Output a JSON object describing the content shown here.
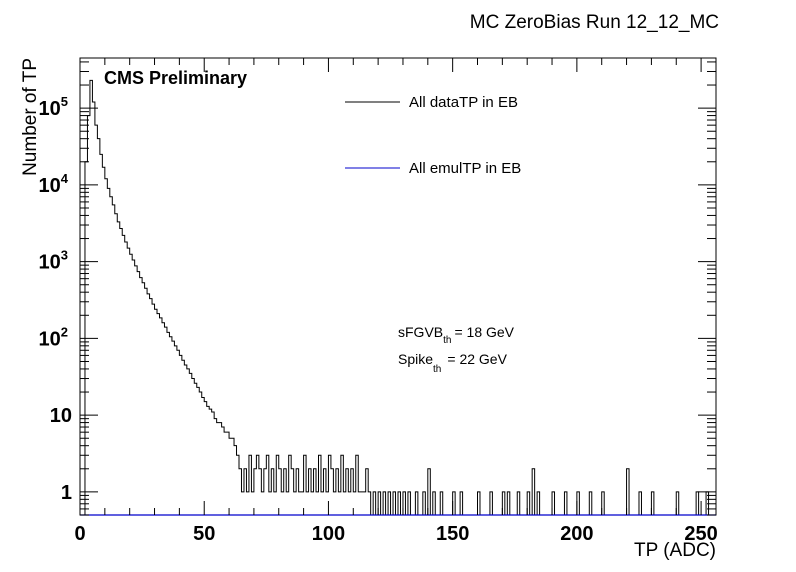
{
  "chart_data": {
    "type": "histogram",
    "title": "MC ZeroBias Run 12_12_MC",
    "xlabel": "TP (ADC)",
    "ylabel": "Number of TP",
    "xlim": [
      0,
      256
    ],
    "ylim": [
      0.5,
      450000
    ],
    "log_y": true,
    "grid": false,
    "legend_position": "top-center",
    "x_ticks": [
      {
        "value": 0,
        "label": "0"
      },
      {
        "value": 50,
        "label": "50"
      },
      {
        "value": 100,
        "label": "100"
      },
      {
        "value": 150,
        "label": "150"
      },
      {
        "value": 200,
        "label": "200"
      },
      {
        "value": 250,
        "label": "250"
      }
    ],
    "y_ticks": [
      {
        "value": 1,
        "base": "1",
        "exp": ""
      },
      {
        "value": 10,
        "base": "10",
        "exp": ""
      },
      {
        "value": 100,
        "base": "10",
        "exp": "2"
      },
      {
        "value": 1000,
        "base": "10",
        "exp": "3"
      },
      {
        "value": 10000,
        "base": "10",
        "exp": "4"
      },
      {
        "value": 100000,
        "base": "10",
        "exp": "5"
      }
    ],
    "annotation_cms": "CMS Preliminary",
    "annotation_sfgvb": {
      "base": "sFGVB",
      "sub": "th",
      "value": "= 18 GeV"
    },
    "annotation_spike": {
      "base": "Spike",
      "sub": "th",
      "value": "= 22 GeV"
    },
    "series": [
      {
        "name": "All dataTP in EB",
        "color": "#000000",
        "bins": [
          [
            2,
            20000
          ],
          [
            3,
            80000
          ],
          [
            4,
            230000
          ],
          [
            5,
            120000
          ],
          [
            6,
            60000
          ],
          [
            7,
            40000
          ],
          [
            8,
            25000
          ],
          [
            9,
            17000
          ],
          [
            10,
            12000
          ],
          [
            11,
            9000
          ],
          [
            12,
            7000
          ],
          [
            13,
            5500
          ],
          [
            14,
            4200
          ],
          [
            15,
            3300
          ],
          [
            16,
            2700
          ],
          [
            17,
            2200
          ],
          [
            18,
            1800
          ],
          [
            19,
            1500
          ],
          [
            20,
            1250
          ],
          [
            21,
            1050
          ],
          [
            22,
            880
          ],
          [
            23,
            740
          ],
          [
            24,
            620
          ],
          [
            25,
            530
          ],
          [
            26,
            450
          ],
          [
            27,
            380
          ],
          [
            28,
            330
          ],
          [
            29,
            280
          ],
          [
            30,
            240
          ],
          [
            31,
            210
          ],
          [
            32,
            185
          ],
          [
            33,
            160
          ],
          [
            34,
            140
          ],
          [
            35,
            120
          ],
          [
            36,
            105
          ],
          [
            37,
            92
          ],
          [
            38,
            80
          ],
          [
            39,
            70
          ],
          [
            40,
            60
          ],
          [
            41,
            52
          ],
          [
            42,
            45
          ],
          [
            43,
            40
          ],
          [
            44,
            35
          ],
          [
            45,
            30
          ],
          [
            46,
            26
          ],
          [
            47,
            23
          ],
          [
            48,
            20
          ],
          [
            49,
            17
          ],
          [
            50,
            15
          ],
          [
            51,
            13
          ],
          [
            52,
            12
          ],
          [
            53,
            11
          ],
          [
            54,
            9
          ],
          [
            55,
            8
          ],
          [
            56,
            8
          ],
          [
            57,
            7
          ],
          [
            58,
            6
          ],
          [
            59,
            6
          ],
          [
            60,
            5
          ],
          [
            61,
            5
          ],
          [
            62,
            4
          ],
          [
            63,
            3
          ],
          [
            64,
            2
          ],
          [
            65,
            1
          ],
          [
            66,
            2
          ],
          [
            67,
            1
          ],
          [
            68,
            3
          ],
          [
            69,
            1
          ],
          [
            70,
            2
          ],
          [
            71,
            3
          ],
          [
            72,
            2
          ],
          [
            73,
            1
          ],
          [
            74,
            2
          ],
          [
            75,
            3
          ],
          [
            76,
            1
          ],
          [
            77,
            2
          ],
          [
            78,
            1
          ],
          [
            79,
            3
          ],
          [
            80,
            2
          ],
          [
            81,
            1
          ],
          [
            82,
            2
          ],
          [
            83,
            1
          ],
          [
            84,
            3
          ],
          [
            85,
            2
          ],
          [
            86,
            1
          ],
          [
            87,
            2
          ],
          [
            88,
            1
          ],
          [
            89,
            1
          ],
          [
            90,
            3
          ],
          [
            91,
            1
          ],
          [
            92,
            2
          ],
          [
            93,
            1
          ],
          [
            94,
            2
          ],
          [
            95,
            1
          ],
          [
            96,
            3
          ],
          [
            97,
            1
          ],
          [
            98,
            2
          ],
          [
            99,
            1
          ],
          [
            100,
            3
          ],
          [
            101,
            2
          ],
          [
            102,
            1
          ],
          [
            103,
            2
          ],
          [
            104,
            1
          ],
          [
            105,
            3
          ],
          [
            106,
            1
          ],
          [
            107,
            2
          ],
          [
            108,
            1
          ],
          [
            109,
            2
          ],
          [
            110,
            1
          ],
          [
            111,
            3
          ],
          [
            112,
            1
          ],
          [
            113,
            1
          ],
          [
            114,
            1
          ],
          [
            115,
            2
          ],
          [
            116,
            1
          ],
          [
            118,
            1
          ],
          [
            120,
            1
          ],
          [
            122,
            1
          ],
          [
            124,
            1
          ],
          [
            126,
            1
          ],
          [
            128,
            1
          ],
          [
            130,
            1
          ],
          [
            132,
            1
          ],
          [
            135,
            1
          ],
          [
            138,
            1
          ],
          [
            140,
            2
          ],
          [
            142,
            1
          ],
          [
            145,
            1
          ],
          [
            150,
            1
          ],
          [
            153,
            1
          ],
          [
            160,
            1
          ],
          [
            165,
            1
          ],
          [
            170,
            1
          ],
          [
            172,
            1
          ],
          [
            176,
            1
          ],
          [
            180,
            1
          ],
          [
            182,
            2
          ],
          [
            184,
            1
          ],
          [
            190,
            1
          ],
          [
            195,
            1
          ],
          [
            200,
            1
          ],
          [
            205,
            1
          ],
          [
            210,
            1
          ],
          [
            220,
            2
          ],
          [
            225,
            1
          ],
          [
            230,
            1
          ],
          [
            240,
            1
          ],
          [
            248,
            1
          ],
          [
            252,
            1
          ]
        ]
      },
      {
        "name": "All emulTP in EB",
        "color": "#0000cc",
        "bins": []
      }
    ]
  }
}
